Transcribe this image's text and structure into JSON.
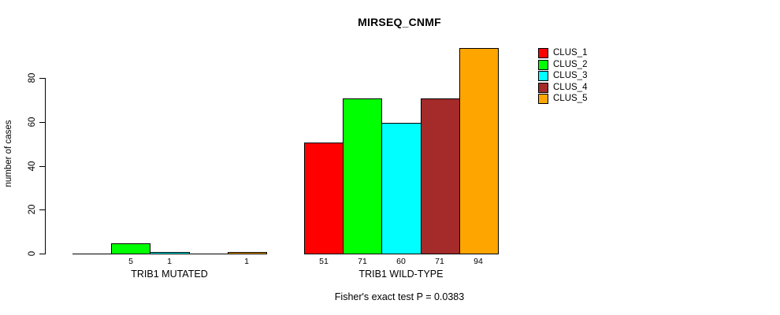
{
  "chart": {
    "title": "MIRSEQ_CNMF",
    "subtitle": "Fisher's exact test P = 0.0383",
    "ylabel": "number of cases"
  },
  "chart_data": {
    "type": "bar",
    "title": "MIRSEQ_CNMF",
    "xlabel": "",
    "ylabel": "number of cases",
    "ylim": [
      0,
      94
    ],
    "yticks": [
      0,
      20,
      40,
      60,
      80
    ],
    "grid": false,
    "legend_position": "right",
    "series": [
      {
        "name": "CLUS_1",
        "color": "#FF0000"
      },
      {
        "name": "CLUS_2",
        "color": "#00FF00"
      },
      {
        "name": "CLUS_3",
        "color": "#00FFFF"
      },
      {
        "name": "CLUS_4",
        "color": "#A52A2A"
      },
      {
        "name": "CLUS_5",
        "color": "#FFA500"
      }
    ],
    "groups": [
      {
        "label": "TRIB1 MUTATED",
        "values": [
          0,
          5,
          1,
          0,
          1
        ],
        "value_labels": [
          "",
          "5",
          "1",
          "",
          "1"
        ]
      },
      {
        "label": "TRIB1 WILD-TYPE",
        "values": [
          51,
          71,
          60,
          71,
          94
        ],
        "value_labels": [
          "51",
          "71",
          "60",
          "71",
          "94"
        ]
      }
    ],
    "annotation": "Fisher's exact test P = 0.0383"
  }
}
